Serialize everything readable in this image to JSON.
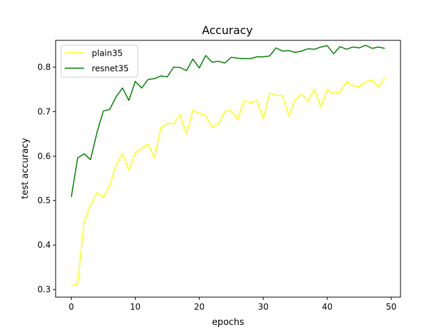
{
  "chart_data": {
    "type": "line",
    "title": "Accuracy",
    "xlabel": "epochs",
    "ylabel": "test accuracy",
    "xlim": [
      -2.45,
      51.45
    ],
    "ylim": [
      0.283,
      0.86
    ],
    "xticks": [
      0,
      10,
      20,
      30,
      40,
      50
    ],
    "yticks": [
      0.3,
      0.4,
      0.5,
      0.6,
      0.7,
      0.8
    ],
    "ytick_labels": [
      "0.3",
      "0.4",
      "0.5",
      "0.6",
      "0.7",
      "0.8"
    ],
    "grid": false,
    "legend_position": "upper-left",
    "x": [
      0,
      1,
      2,
      3,
      4,
      5,
      6,
      7,
      8,
      9,
      10,
      11,
      12,
      13,
      14,
      15,
      16,
      17,
      18,
      19,
      20,
      21,
      22,
      23,
      24,
      25,
      26,
      27,
      28,
      29,
      30,
      31,
      32,
      33,
      34,
      35,
      36,
      37,
      38,
      39,
      40,
      41,
      42,
      43,
      44,
      45,
      46,
      47,
      48,
      49
    ],
    "series": [
      {
        "name": "plain35",
        "color": "#ffff00",
        "values": [
          0.308,
          0.313,
          0.452,
          0.489,
          0.518,
          0.507,
          0.534,
          0.58,
          0.606,
          0.568,
          0.607,
          0.617,
          0.627,
          0.596,
          0.664,
          0.673,
          0.673,
          0.693,
          0.65,
          0.703,
          0.696,
          0.691,
          0.664,
          0.673,
          0.7,
          0.702,
          0.682,
          0.725,
          0.72,
          0.725,
          0.684,
          0.742,
          0.736,
          0.736,
          0.69,
          0.727,
          0.739,
          0.723,
          0.75,
          0.71,
          0.749,
          0.741,
          0.744,
          0.767,
          0.758,
          0.756,
          0.767,
          0.771,
          0.755,
          0.776
        ]
      },
      {
        "name": "resnet35",
        "color": "#008000",
        "values": [
          0.508,
          0.596,
          0.605,
          0.592,
          0.652,
          0.701,
          0.705,
          0.733,
          0.753,
          0.725,
          0.768,
          0.753,
          0.772,
          0.774,
          0.78,
          0.778,
          0.8,
          0.799,
          0.792,
          0.818,
          0.798,
          0.826,
          0.811,
          0.813,
          0.809,
          0.822,
          0.82,
          0.819,
          0.819,
          0.823,
          0.823,
          0.825,
          0.843,
          0.836,
          0.837,
          0.833,
          0.836,
          0.841,
          0.84,
          0.845,
          0.848,
          0.83,
          0.846,
          0.84,
          0.845,
          0.843,
          0.849,
          0.842,
          0.845,
          0.842
        ]
      }
    ]
  }
}
